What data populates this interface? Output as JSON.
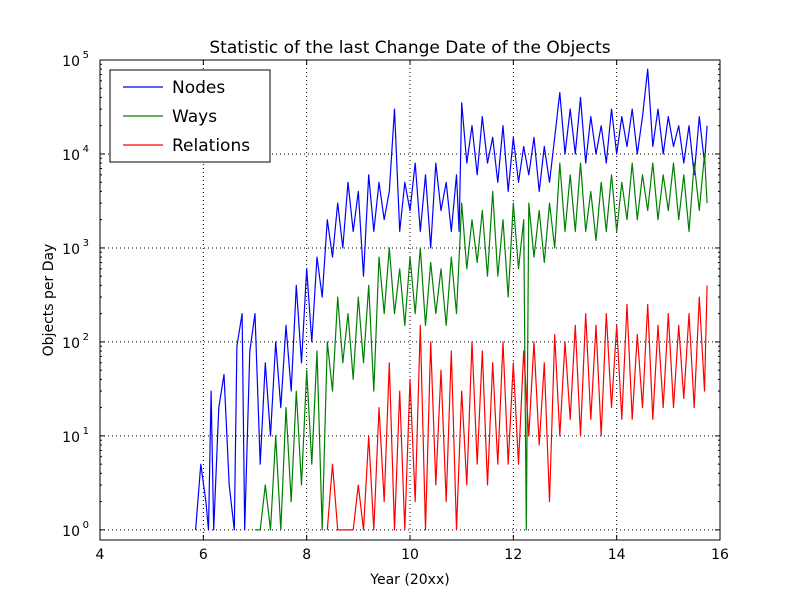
{
  "chart_data": {
    "type": "line",
    "title": "Statistic of the last Change Date of the Objects",
    "xlabel": "Year (20xx)",
    "ylabel": "Objects per Day",
    "xlim": [
      4,
      16
    ],
    "ylim": [
      0.78,
      100000
    ],
    "yscale": "log",
    "grid": true,
    "legend_position": "top-left",
    "xticks": [
      4,
      6,
      8,
      10,
      12,
      14,
      16
    ],
    "xtick_labels": [
      "4",
      "6",
      "8",
      "10",
      "12",
      "14",
      "16"
    ],
    "yticks": [
      1,
      10,
      100,
      1000,
      10000,
      100000
    ],
    "ytick_labels": [
      {
        "base": "10",
        "exp": "0"
      },
      {
        "base": "10",
        "exp": "1"
      },
      {
        "base": "10",
        "exp": "2"
      },
      {
        "base": "10",
        "exp": "3"
      },
      {
        "base": "10",
        "exp": "4"
      },
      {
        "base": "10",
        "exp": "5"
      }
    ],
    "series": [
      {
        "name": "Nodes",
        "color": "#0000ff",
        "x": [
          5.85,
          5.95,
          6.05,
          6.1,
          6.15,
          6.2,
          6.3,
          6.4,
          6.5,
          6.6,
          6.65,
          6.75,
          6.8,
          6.9,
          7.0,
          7.1,
          7.2,
          7.3,
          7.4,
          7.5,
          7.6,
          7.7,
          7.8,
          7.9,
          8.0,
          8.1,
          8.2,
          8.3,
          8.4,
          8.5,
          8.6,
          8.7,
          8.8,
          8.9,
          9.0,
          9.1,
          9.2,
          9.3,
          9.4,
          9.5,
          9.6,
          9.7,
          9.8,
          9.9,
          10.0,
          10.1,
          10.2,
          10.3,
          10.4,
          10.5,
          10.6,
          10.7,
          10.8,
          10.9,
          10.95,
          11.0,
          11.1,
          11.2,
          11.3,
          11.4,
          11.5,
          11.6,
          11.7,
          11.8,
          11.9,
          12.0,
          12.1,
          12.2,
          12.3,
          12.4,
          12.5,
          12.6,
          12.7,
          12.8,
          12.9,
          13.0,
          13.1,
          13.2,
          13.3,
          13.4,
          13.5,
          13.6,
          13.7,
          13.8,
          13.9,
          14.0,
          14.1,
          14.2,
          14.3,
          14.4,
          14.5,
          14.6,
          14.7,
          14.8,
          14.9,
          15.0,
          15.1,
          15.2,
          15.3,
          15.4,
          15.5,
          15.6,
          15.7,
          15.75
        ],
        "y": [
          1,
          5,
          2,
          1,
          30,
          1,
          20,
          45,
          3,
          1,
          90,
          200,
          1,
          80,
          200,
          5,
          60,
          10,
          100,
          20,
          150,
          30,
          400,
          60,
          600,
          100,
          800,
          300,
          2000,
          800,
          3000,
          1000,
          5000,
          1500,
          4000,
          500,
          6000,
          1500,
          5000,
          2000,
          4000,
          30000,
          1500,
          5000,
          2500,
          8000,
          1500,
          6000,
          1000,
          8000,
          2500,
          5000,
          1500,
          6000,
          1500,
          35000,
          8000,
          20000,
          6000,
          25000,
          8000,
          15000,
          5000,
          20000,
          4000,
          15000,
          5000,
          12000,
          6000,
          15000,
          4000,
          12000,
          5000,
          15000,
          45000,
          10000,
          30000,
          10000,
          40000,
          8000,
          25000,
          10000,
          20000,
          8000,
          30000,
          10000,
          25000,
          12000,
          30000,
          10000,
          25000,
          80000,
          12000,
          30000,
          10000,
          25000,
          12000,
          20000,
          8000,
          20000,
          6000,
          25000,
          8000,
          20000
        ]
      },
      {
        "name": "Ways",
        "color": "#008000",
        "x": [
          7.0,
          7.1,
          7.2,
          7.3,
          7.4,
          7.5,
          7.6,
          7.7,
          7.8,
          7.9,
          8.0,
          8.1,
          8.2,
          8.3,
          8.4,
          8.5,
          8.6,
          8.7,
          8.8,
          8.9,
          9.0,
          9.1,
          9.2,
          9.3,
          9.4,
          9.5,
          9.6,
          9.7,
          9.8,
          9.9,
          10.0,
          10.1,
          10.2,
          10.3,
          10.4,
          10.5,
          10.6,
          10.7,
          10.8,
          10.9,
          11.0,
          11.1,
          11.2,
          11.3,
          11.4,
          11.5,
          11.6,
          11.7,
          11.8,
          11.9,
          12.0,
          12.1,
          12.2,
          12.25,
          12.3,
          12.4,
          12.5,
          12.6,
          12.7,
          12.8,
          12.9,
          13.0,
          13.1,
          13.2,
          13.3,
          13.4,
          13.5,
          13.6,
          13.7,
          13.8,
          13.9,
          14.0,
          14.1,
          14.2,
          14.3,
          14.4,
          14.5,
          14.6,
          14.7,
          14.8,
          14.9,
          15.0,
          15.1,
          15.2,
          15.3,
          15.4,
          15.5,
          15.6,
          15.7,
          15.75
        ],
        "y": [
          1,
          1,
          3,
          1,
          10,
          1,
          20,
          2,
          30,
          3,
          50,
          5,
          80,
          1,
          100,
          30,
          300,
          60,
          200,
          40,
          300,
          60,
          400,
          30,
          800,
          200,
          1000,
          200,
          600,
          150,
          800,
          200,
          1000,
          150,
          700,
          200,
          600,
          150,
          800,
          200,
          3000,
          600,
          2000,
          700,
          2500,
          500,
          4000,
          500,
          2000,
          300,
          3000,
          600,
          2000,
          1,
          3000,
          800,
          2500,
          700,
          3000,
          1000,
          8000,
          1500,
          6000,
          1500,
          8000,
          1500,
          4000,
          1200,
          5000,
          1500,
          6000,
          1500,
          5000,
          2000,
          8000,
          2000,
          6000,
          2500,
          8000,
          2000,
          6000,
          2500,
          8000,
          2000,
          6000,
          1500,
          8000,
          2500,
          10000,
          3000
        ]
      },
      {
        "name": "Relations",
        "color": "#ff0000",
        "x": [
          8.4,
          8.5,
          8.6,
          8.9,
          9.0,
          9.1,
          9.2,
          9.3,
          9.4,
          9.5,
          9.6,
          9.7,
          9.8,
          9.9,
          10.0,
          10.1,
          10.2,
          10.3,
          10.4,
          10.5,
          10.6,
          10.7,
          10.8,
          10.9,
          11.0,
          11.1,
          11.2,
          11.3,
          11.4,
          11.5,
          11.6,
          11.7,
          11.8,
          11.9,
          12.0,
          12.1,
          12.2,
          12.3,
          12.4,
          12.5,
          12.6,
          12.7,
          12.8,
          12.9,
          13.0,
          13.1,
          13.2,
          13.3,
          13.4,
          13.5,
          13.6,
          13.7,
          13.8,
          13.9,
          14.0,
          14.1,
          14.2,
          14.3,
          14.4,
          14.5,
          14.6,
          14.7,
          14.8,
          14.9,
          15.0,
          15.1,
          15.2,
          15.3,
          15.4,
          15.5,
          15.6,
          15.7,
          15.75
        ],
        "y": [
          1,
          5,
          1,
          1,
          3,
          1,
          10,
          1,
          20,
          2,
          60,
          1,
          30,
          1,
          40,
          2,
          150,
          1,
          100,
          3,
          50,
          2,
          80,
          1,
          30,
          3,
          100,
          5,
          80,
          3,
          60,
          5,
          100,
          5,
          60,
          5,
          80,
          10,
          100,
          8,
          60,
          2,
          120,
          10,
          100,
          15,
          150,
          10,
          200,
          15,
          150,
          10,
          200,
          20,
          150,
          15,
          250,
          15,
          120,
          20,
          250,
          15,
          150,
          20,
          200,
          20,
          150,
          25,
          200,
          20,
          300,
          30,
          400
        ]
      }
    ]
  }
}
